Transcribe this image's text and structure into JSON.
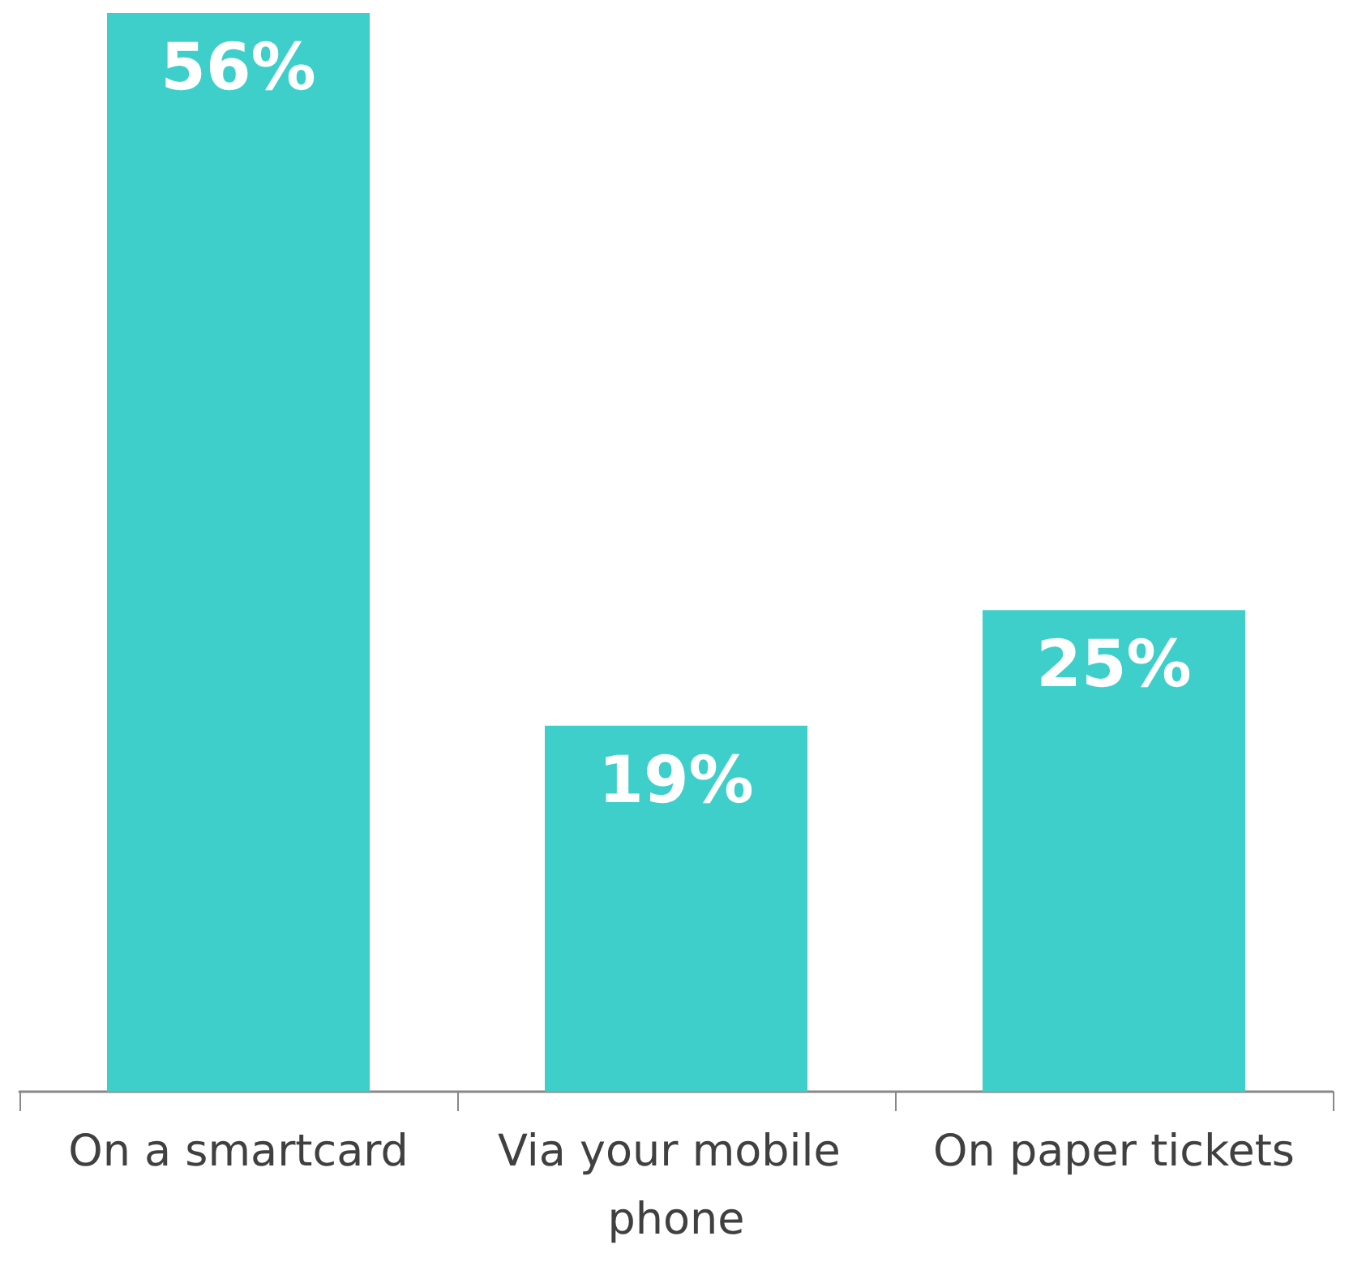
{
  "chart_data": {
    "type": "bar",
    "categories": [
      "On a smartcard",
      "Via your mobile phone",
      "On paper tickets"
    ],
    "values": [
      56,
      19,
      25
    ],
    "color": "#3ecfca",
    "value_labels": [
      "56%",
      "19%",
      "25%"
    ]
  }
}
